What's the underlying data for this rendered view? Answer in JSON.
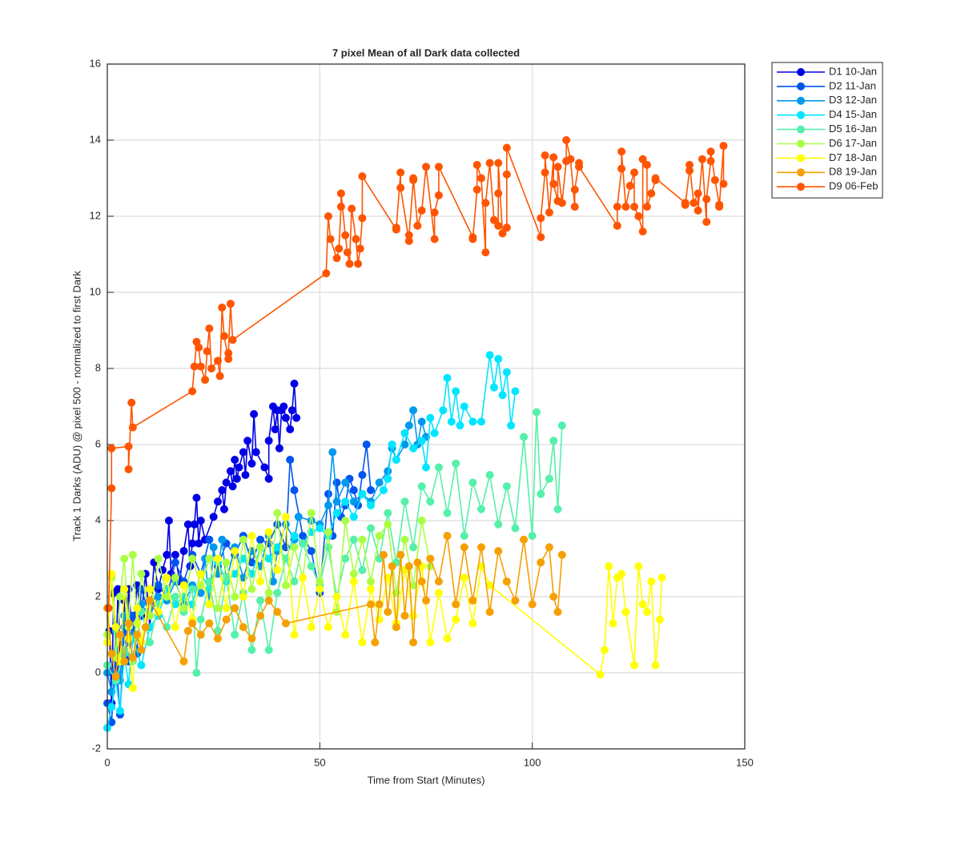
{
  "chart_data": {
    "type": "line",
    "title": "7 pixel Mean of all Dark data collected",
    "x_label": "Time from Start (Minutes)",
    "y_label": "Track 1 Darks (ADU) @ pixel 500 - normalized to first Dark",
    "xlim": [
      0,
      150
    ],
    "ylim": [
      -2,
      16
    ],
    "xticks": [
      0,
      50,
      100,
      150
    ],
    "yticks": [
      -2,
      0,
      2,
      4,
      6,
      8,
      10,
      12,
      14,
      16
    ],
    "grid": true,
    "legend": "outside-top-right",
    "series": [
      {
        "name": "D1 10-Jan",
        "color": "#0000e6",
        "x": [
          0.5,
          1,
          1.5,
          2,
          2.5,
          3,
          4,
          4.5,
          5,
          6,
          7,
          8,
          9,
          10,
          11,
          12,
          13,
          14,
          14.5,
          15,
          16,
          17,
          18,
          19,
          19.5,
          20,
          20.5,
          21,
          21.5,
          22,
          23,
          25,
          26,
          27,
          27.5,
          28,
          29,
          29.5,
          30,
          30.5,
          31,
          32,
          32.5,
          33,
          34,
          34.5,
          35,
          37,
          38,
          38,
          39,
          39.5,
          40,
          40.5,
          41,
          41.5,
          42,
          43,
          43.5,
          44,
          44.5
        ],
        "values": [
          1.1,
          -0.8,
          2.1,
          0.1,
          2.2,
          0.5,
          1.9,
          0.4,
          2.2,
          0.9,
          2.3,
          1.5,
          2.6,
          1.2,
          2.9,
          2.2,
          2.7,
          3.1,
          4.0,
          2.6,
          3.1,
          2.4,
          3.2,
          3.9,
          2.8,
          3.4,
          3.9,
          4.6,
          3.4,
          4.0,
          3.5,
          4.1,
          4.5,
          4.8,
          4.3,
          5.0,
          5.3,
          4.9,
          5.6,
          5.1,
          5.4,
          5.8,
          5.2,
          6.1,
          5.5,
          6.8,
          5.8,
          5.4,
          5.1,
          6.1,
          7.0,
          6.4,
          6.9,
          5.9,
          6.9,
          7.0,
          6.7,
          6.4,
          6.9,
          7.6,
          6.7
        ]
      },
      {
        "name": "D2 11-Jan",
        "color": "#0055f0",
        "x": [
          0,
          1,
          2,
          3,
          4,
          5,
          6,
          7,
          8,
          10,
          12,
          14,
          16,
          18,
          20,
          22,
          24,
          26,
          28,
          30,
          32,
          34,
          36,
          38,
          40,
          42,
          43,
          44,
          46,
          48,
          50,
          52,
          53,
          54,
          55,
          56,
          57,
          58,
          59,
          60,
          61,
          62
        ],
        "values": [
          -0.8,
          -1.3,
          0.5,
          -1.1,
          1.2,
          0.3,
          1.5,
          0.5,
          2.2,
          1.5,
          2.3,
          2.0,
          2.9,
          2.4,
          3.1,
          2.6,
          3.5,
          2.8,
          3.4,
          3.1,
          3.6,
          2.9,
          3.5,
          3.4,
          3.9,
          3.3,
          5.6,
          4.8,
          3.6,
          3.2,
          2.1,
          4.7,
          3.6,
          5.0,
          4.1,
          4.4,
          5.1,
          4.8,
          4.4,
          5.2,
          6.0,
          4.8
        ]
      },
      {
        "name": "D3 12-Jan",
        "color": "#0099ee",
        "x": [
          0,
          1,
          2,
          3,
          4,
          5,
          6,
          8,
          10,
          12,
          14,
          16,
          18,
          20,
          22,
          23,
          24,
          25,
          26,
          27,
          28,
          30,
          32,
          34,
          36,
          38,
          39,
          40,
          42,
          44,
          45,
          48,
          50,
          52,
          53,
          54,
          56,
          58,
          60,
          62,
          64,
          66,
          67,
          68,
          70,
          71,
          72,
          73,
          74,
          75
        ],
        "values": [
          0.0,
          -0.5,
          1.1,
          -0.2,
          1.5,
          0.8,
          1.0,
          1.8,
          1.5,
          2.0,
          1.9,
          2.4,
          1.8,
          2.3,
          2.1,
          3.0,
          1.8,
          3.3,
          2.6,
          3.5,
          2.4,
          3.3,
          2.5,
          3.2,
          2.8,
          3.6,
          2.4,
          3.2,
          3.9,
          3.5,
          4.1,
          4.0,
          3.9,
          4.4,
          5.8,
          4.5,
          5.0,
          4.5,
          4.7,
          4.5,
          5.0,
          5.3,
          5.9,
          5.6,
          6.0,
          6.5,
          6.9,
          6.0,
          6.6,
          6.2
        ]
      },
      {
        "name": "D4 15-Jan",
        "color": "#00e6ff",
        "x": [
          0,
          1,
          2,
          3,
          4,
          5,
          6,
          8,
          10,
          12,
          14,
          16,
          18,
          20,
          22,
          24,
          26,
          28,
          30,
          32,
          34,
          36,
          38,
          40,
          42,
          44,
          46,
          48,
          50,
          52,
          54,
          56,
          58,
          60,
          62,
          65,
          66,
          67,
          68,
          70,
          72,
          74,
          75,
          76,
          77,
          79,
          80,
          81,
          82,
          83,
          84,
          86,
          88,
          90,
          91,
          92,
          93,
          94,
          95,
          96
        ],
        "values": [
          -1.45,
          -0.9,
          -0.2,
          -1.0,
          0.5,
          -0.3,
          0.9,
          0.2,
          1.2,
          1.5,
          2.2,
          1.8,
          2.0,
          1.8,
          2.6,
          2.2,
          2.9,
          2.4,
          2.6,
          3.0,
          2.6,
          3.3,
          3.0,
          3.3,
          3.0,
          3.6,
          3.4,
          3.7,
          3.8,
          3.6,
          4.2,
          4.5,
          4.1,
          4.7,
          4.4,
          4.8,
          5.1,
          6.0,
          5.6,
          6.3,
          5.9,
          6.1,
          5.4,
          6.7,
          6.3,
          6.9,
          7.75,
          6.6,
          7.4,
          6.5,
          7.0,
          6.6,
          6.6,
          8.35,
          7.5,
          8.25,
          7.3,
          7.9,
          6.5,
          7.4
        ]
      },
      {
        "name": "D5 16-Jan",
        "color": "#55f0aa",
        "x": [
          0,
          2,
          4,
          6,
          8,
          10,
          12,
          14,
          16,
          18,
          20,
          21,
          22,
          24,
          26,
          28,
          30,
          32,
          34,
          36,
          38,
          40,
          42,
          44,
          46,
          48,
          50,
          52,
          54,
          56,
          58,
          60,
          62,
          64,
          66,
          68,
          70,
          72,
          74,
          76,
          78,
          80,
          82,
          84,
          86,
          88,
          90,
          92,
          94,
          96,
          98,
          100,
          101,
          102,
          104,
          105,
          106,
          107
        ],
        "values": [
          0.2,
          -0.2,
          0.6,
          0.3,
          1.6,
          0.8,
          1.8,
          1.2,
          2.0,
          1.6,
          2.2,
          0.0,
          1.4,
          2.4,
          1.1,
          2.5,
          1.0,
          2.1,
          0.6,
          1.9,
          0.6,
          2.1,
          3.0,
          2.4,
          3.4,
          2.8,
          2.3,
          3.3,
          2.0,
          3.0,
          3.5,
          2.7,
          3.8,
          3.0,
          4.2,
          2.9,
          4.5,
          3.3,
          4.9,
          4.5,
          5.4,
          4.2,
          5.5,
          3.6,
          5.0,
          4.3,
          5.2,
          3.9,
          4.9,
          3.8,
          6.2,
          3.6,
          6.85,
          4.7,
          5.1,
          6.1,
          4.3,
          6.5
        ]
      },
      {
        "name": "D6 17-Jan",
        "color": "#aaff44",
        "x": [
          0,
          1,
          2,
          3,
          4,
          5,
          6,
          7,
          8,
          10,
          12,
          14,
          16,
          18,
          20,
          22,
          24,
          26,
          28,
          30,
          32,
          34,
          36,
          38,
          40,
          42,
          44,
          46,
          48,
          50,
          52,
          54,
          56,
          58,
          60,
          62,
          64,
          66,
          68,
          70,
          72,
          74,
          76
        ],
        "values": [
          1.0,
          2.5,
          0.4,
          2.0,
          3.0,
          1.2,
          3.1,
          1.3,
          2.6,
          1.5,
          3.0,
          2.0,
          2.5,
          1.7,
          3.0,
          2.3,
          3.0,
          1.7,
          2.9,
          2.0,
          3.5,
          2.2,
          3.3,
          2.1,
          4.2,
          2.3,
          3.3,
          2.5,
          4.2,
          2.4,
          3.7,
          1.6,
          4.0,
          2.6,
          3.5,
          2.4,
          3.6,
          3.9,
          2.1,
          3.5,
          2.3,
          4.0,
          2.8
        ]
      },
      {
        "name": "D7 18-Jan",
        "color": "#ffff00",
        "x": [
          0,
          1,
          2,
          3,
          4,
          5,
          6,
          7,
          8,
          10,
          12,
          14,
          16,
          18,
          20,
          22,
          24,
          26,
          28,
          30,
          32,
          34,
          36,
          38,
          40,
          42,
          44,
          46,
          48,
          50,
          52,
          54,
          56,
          58,
          60,
          62,
          64,
          66,
          68,
          70,
          72,
          74,
          76,
          78,
          80,
          82,
          84,
          86,
          88,
          90,
          116,
          117,
          118,
          119,
          120,
          121,
          122,
          124,
          125,
          126,
          127,
          128,
          129,
          130,
          130.5
        ],
        "values": [
          0.8,
          2.6,
          1.2,
          0.3,
          2.2,
          0.9,
          -0.4,
          1.7,
          0.8,
          2.2,
          1.6,
          2.5,
          1.2,
          2.3,
          1.4,
          2.6,
          1.8,
          3.0,
          1.7,
          3.2,
          2.0,
          3.6,
          2.4,
          3.7,
          2.7,
          4.1,
          1.0,
          2.5,
          1.2,
          2.2,
          1.2,
          2.0,
          1.0,
          2.4,
          0.8,
          2.2,
          1.4,
          2.5,
          1.3,
          2.7,
          1.5,
          2.8,
          0.8,
          2.1,
          0.9,
          1.4,
          2.5,
          1.3,
          2.8,
          2.3,
          -0.05,
          0.6,
          2.8,
          1.3,
          2.5,
          2.6,
          1.6,
          0.2,
          2.8,
          1.8,
          1.6,
          2.4,
          0.2,
          1.4,
          2.5
        ]
      },
      {
        "name": "D8 19-Jan",
        "color": "#f5a000",
        "x": [
          0,
          1,
          2,
          3,
          4,
          5,
          6,
          7,
          8,
          9,
          10,
          18,
          19,
          20,
          22,
          24,
          26,
          28,
          30,
          32,
          34,
          36,
          38,
          40,
          42,
          62,
          63,
          64,
          65,
          66,
          67,
          68,
          69,
          70,
          71,
          72,
          73,
          74,
          75,
          76,
          78,
          80,
          82,
          84,
          86,
          88,
          90,
          92,
          94,
          96,
          98,
          100,
          102,
          104,
          105,
          106,
          107
        ],
        "values": [
          1.7,
          0.5,
          -0.1,
          1.0,
          0.3,
          1.3,
          0.4,
          1.0,
          0.6,
          1.2,
          1.9,
          0.3,
          1.1,
          1.3,
          1.0,
          1.3,
          0.9,
          1.4,
          1.7,
          1.2,
          0.9,
          1.5,
          1.9,
          1.6,
          1.3,
          1.8,
          0.8,
          1.8,
          3.1,
          1.6,
          2.8,
          1.2,
          3.1,
          1.5,
          2.8,
          0.8,
          2.9,
          2.4,
          1.9,
          3.0,
          2.4,
          3.6,
          1.8,
          3.3,
          1.9,
          3.3,
          1.6,
          3.2,
          2.4,
          1.9,
          3.5,
          1.8,
          2.9,
          3.3,
          2.0,
          1.6,
          3.1
        ]
      },
      {
        "name": "D9 06-Feb",
        "color": "#ff5500",
        "x": [
          0.3,
          1,
          1,
          5,
          5,
          5.7,
          6,
          20,
          20.5,
          21,
          21.5,
          22,
          23,
          23.5,
          24,
          24.5,
          26,
          26.5,
          27,
          27.5,
          28.5,
          28.5,
          29,
          29.5,
          51.5,
          52,
          52.5,
          54,
          54.5,
          55,
          55,
          56,
          56.5,
          57,
          57.5,
          58.5,
          59,
          59.5,
          60,
          60,
          68,
          68,
          69,
          69,
          71,
          71,
          72,
          72,
          73,
          74,
          75,
          77,
          77,
          78,
          78,
          86,
          86,
          87,
          87,
          88,
          89,
          89,
          90,
          91,
          92,
          92,
          92,
          93,
          94,
          94,
          94,
          102,
          102,
          103,
          103,
          104,
          105,
          105,
          106,
          106,
          107,
          108,
          108,
          109,
          110,
          110,
          111,
          111,
          120,
          120,
          121,
          121,
          122,
          123,
          124,
          124,
          125,
          126,
          126,
          127,
          127,
          128,
          129,
          129,
          136,
          136,
          137,
          137,
          138,
          139,
          139,
          140,
          141,
          141,
          142,
          142,
          143,
          144,
          144,
          145,
          145
        ],
        "values": [
          1.7,
          4.85,
          5.9,
          5.95,
          5.35,
          7.1,
          6.45,
          7.4,
          8.05,
          8.7,
          8.55,
          8.05,
          7.7,
          8.45,
          9.05,
          8.0,
          8.2,
          7.8,
          9.6,
          8.85,
          8.25,
          8.4,
          9.7,
          8.75,
          10.5,
          12.0,
          11.4,
          10.9,
          11.15,
          12.25,
          12.6,
          11.5,
          11.05,
          10.75,
          12.2,
          11.4,
          10.75,
          11.15,
          11.95,
          13.05,
          11.65,
          11.7,
          13.15,
          12.75,
          11.35,
          11.5,
          12.95,
          13.0,
          11.75,
          12.15,
          13.3,
          11.4,
          12.1,
          12.55,
          13.3,
          11.45,
          11.4,
          12.7,
          13.35,
          13.0,
          11.05,
          12.35,
          13.4,
          11.9,
          11.75,
          12.6,
          13.4,
          11.55,
          11.7,
          13.1,
          13.8,
          11.45,
          11.95,
          13.15,
          13.6,
          12.1,
          13.55,
          12.85,
          12.4,
          13.3,
          12.35,
          13.45,
          14.0,
          13.5,
          12.25,
          12.7,
          13.4,
          13.3,
          11.75,
          12.25,
          13.25,
          13.7,
          12.25,
          12.8,
          13.15,
          12.25,
          12.0,
          11.6,
          13.5,
          13.35,
          12.25,
          12.6,
          12.95,
          13.0,
          12.35,
          12.3,
          13.2,
          13.35,
          12.35,
          12.6,
          12.15,
          13.5,
          11.85,
          12.45,
          13.45,
          13.7,
          12.95,
          12.3,
          12.25,
          13.85,
          12.85
        ]
      }
    ]
  }
}
